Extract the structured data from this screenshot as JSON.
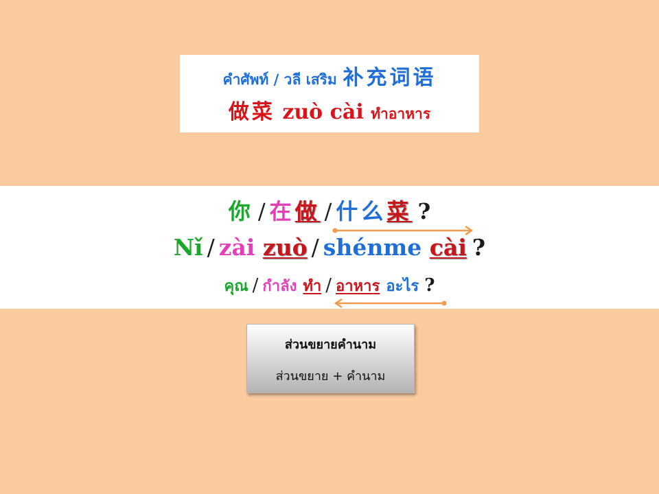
{
  "title": {
    "line1_thai": "คำศัพท์ / วลี เสริม",
    "line1_zh": "补充词语",
    "line2_hanzi": "做菜",
    "line2_pinyin": "zuò cài",
    "line2_thai": "ทำอาหาร"
  },
  "sentence": {
    "hanzi": {
      "w1": "你",
      "sep1": "/",
      "w2a": "在",
      "w2b": "做",
      "sep2": "/",
      "w3a": "什么",
      "w3b": "菜",
      "q": "?"
    },
    "pinyin": {
      "w1": "Nǐ",
      "sep1": "/",
      "w2a": "zài",
      "w2b": "zuò",
      "sep2": "/",
      "w3a": "shénme",
      "w3b": "cài",
      "q": "?"
    },
    "thai": {
      "w1": "คุณ",
      "sep1": "/",
      "w2a": "กำลัง",
      "w2b": "ทำ",
      "sep2": "/",
      "w3a": "อาหาร",
      "w3b": "อะไร",
      "q": "?"
    }
  },
  "note": {
    "title": "ส่วนขยายคำนาม",
    "body": "ส่วนขยาย + คำนาม"
  },
  "colors": {
    "background": "#fbcba0",
    "arrow": "#ee9a4f",
    "green": "#1aa82a",
    "pink": "#e041b9",
    "red": "#c8161d",
    "blue": "#1f6fd6"
  }
}
